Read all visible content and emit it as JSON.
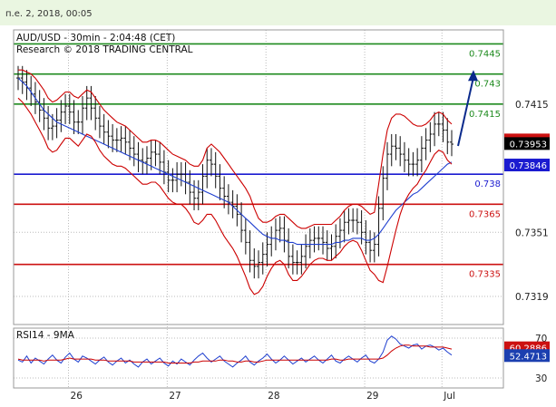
{
  "header": {
    "timestamp": "п.е. 2, 2018, 00:05",
    "symbol_line": "AUD/USD - 30min - 2:04:48 (CET)",
    "research_line": "Research © 2018 TRADING CENTRAL"
  },
  "chart_data": [
    {
      "type": "line",
      "title": "AUD/USD - 30min - 2:04:48 (CET)",
      "x_tick_labels": [
        "26",
        "27",
        "28",
        "29",
        "Jul"
      ],
      "ylim": [
        0.7305,
        0.7452
      ],
      "y_tick_labels": [
        "0.7415",
        "0.7351",
        "0.7319"
      ],
      "grid": true,
      "series": [
        {
          "name": "",
          "role": "price",
          "color": "#000000",
          "values": [
            0.7428,
            0.7426,
            0.7423,
            0.742,
            0.7416,
            0.7412,
            0.7408,
            0.7403,
            0.7404,
            0.7407,
            0.7411,
            0.7414,
            0.7411,
            0.7406,
            0.7406,
            0.7413,
            0.7418,
            0.7413,
            0.7408,
            0.7404,
            0.7401,
            0.7399,
            0.7397,
            0.7397,
            0.7398,
            0.7396,
            0.7393,
            0.739,
            0.7387,
            0.7386,
            0.7388,
            0.7391,
            0.739,
            0.7386,
            0.7381,
            0.7377,
            0.7377,
            0.738,
            0.738,
            0.7376,
            0.7371,
            0.7368,
            0.7371,
            0.7379,
            0.7387,
            0.7385,
            0.7379,
            0.7373,
            0.7369,
            0.7366,
            0.7364,
            0.736,
            0.7352,
            0.7346,
            0.7337,
            0.7334,
            0.7336,
            0.734,
            0.7345,
            0.7348,
            0.7352,
            0.7353,
            0.7347,
            0.7339,
            0.7336,
            0.7336,
            0.7339,
            0.7344,
            0.7347,
            0.7348,
            0.7348,
            0.7346,
            0.7343,
            0.7344,
            0.7349,
            0.7352,
            0.7356,
            0.7357,
            0.7357,
            0.7356,
            0.7351,
            0.7346,
            0.7342,
            0.7345,
            0.7363,
            0.7378,
            0.739,
            0.7394,
            0.7393,
            0.739,
            0.7387,
            0.7385,
            0.7385,
            0.7387,
            0.7393,
            0.7397,
            0.74,
            0.7405,
            0.7405,
            0.7402,
            0.7396,
            0.7395
          ]
        },
        {
          "name": "",
          "role": "ma-blue",
          "color": "#1f3fcf",
          "values": [
            0.7428,
            0.7426,
            0.7424,
            0.7421,
            0.7418,
            0.7415,
            0.7412,
            0.741,
            0.7408,
            0.7406,
            0.7405,
            0.7404,
            0.7403,
            0.7402,
            0.7401,
            0.74,
            0.7399,
            0.7398,
            0.7397,
            0.7396,
            0.7395,
            0.7394,
            0.7393,
            0.7392,
            0.7391,
            0.739,
            0.7389,
            0.7388,
            0.7387,
            0.7386,
            0.7385,
            0.7384,
            0.7383,
            0.7382,
            0.7381,
            0.738,
            0.7379,
            0.7378,
            0.7377,
            0.7376,
            0.7375,
            0.7374,
            0.7373,
            0.7372,
            0.7371,
            0.737,
            0.7369,
            0.7368,
            0.7367,
            0.7366,
            0.7364,
            0.7362,
            0.736,
            0.7358,
            0.7356,
            0.7354,
            0.7352,
            0.735,
            0.7349,
            0.7348,
            0.7348,
            0.7347,
            0.7347,
            0.7346,
            0.7346,
            0.7345,
            0.7345,
            0.7345,
            0.7345,
            0.7345,
            0.7345,
            0.7345,
            0.7345,
            0.7345,
            0.7346,
            0.7346,
            0.7347,
            0.7347,
            0.7348,
            0.7348,
            0.7348,
            0.7347,
            0.7347,
            0.7348,
            0.735,
            0.7353,
            0.7356,
            0.7359,
            0.7362,
            0.7364,
            0.7366,
            0.7368,
            0.737,
            0.7371,
            0.7373,
            0.7375,
            0.7377,
            0.7379,
            0.7381,
            0.7383,
            0.7385,
            0.7386
          ]
        },
        {
          "name": "",
          "role": "bollinger-upper",
          "color": "#cc0000",
          "values": [
            0.7432,
            0.7432,
            0.7431,
            0.743,
            0.7428,
            0.7425,
            0.7422,
            0.7418,
            0.7416,
            0.7417,
            0.7419,
            0.7421,
            0.7421,
            0.7419,
            0.7418,
            0.742,
            0.7422,
            0.7421,
            0.7418,
            0.7415,
            0.7412,
            0.741,
            0.7408,
            0.7406,
            0.7405,
            0.7404,
            0.7402,
            0.74,
            0.7398,
            0.7396,
            0.7396,
            0.7397,
            0.7397,
            0.7396,
            0.7394,
            0.7392,
            0.739,
            0.7389,
            0.7388,
            0.7387,
            0.7385,
            0.7384,
            0.7384,
            0.7387,
            0.7393,
            0.7395,
            0.7393,
            0.7391,
            0.7388,
            0.7385,
            0.7382,
            0.7379,
            0.7376,
            0.7373,
            0.7369,
            0.7363,
            0.7358,
            0.7356,
            0.7356,
            0.7357,
            0.7359,
            0.736,
            0.736,
            0.7358,
            0.7356,
            0.7354,
            0.7353,
            0.7353,
            0.7354,
            0.7355,
            0.7355,
            0.7355,
            0.7355,
            0.7355,
            0.7357,
            0.7359,
            0.7362,
            0.7364,
            0.7365,
            0.7365,
            0.7364,
            0.7362,
            0.736,
            0.7361,
            0.7375,
            0.739,
            0.7402,
            0.7408,
            0.741,
            0.741,
            0.7409,
            0.7407,
            0.7405,
            0.7404,
            0.7404,
            0.7405,
            0.7407,
            0.741,
            0.7411,
            0.741,
            0.7407,
            0.7405
          ]
        },
        {
          "name": "",
          "role": "bollinger-lower",
          "color": "#cc0000",
          "values": [
            0.7418,
            0.7416,
            0.7413,
            0.741,
            0.7406,
            0.7402,
            0.7398,
            0.7393,
            0.7391,
            0.7392,
            0.7395,
            0.7398,
            0.7398,
            0.7396,
            0.7394,
            0.7397,
            0.74,
            0.7399,
            0.7396,
            0.7392,
            0.7389,
            0.7387,
            0.7385,
            0.7384,
            0.7384,
            0.7383,
            0.7381,
            0.7379,
            0.7377,
            0.7375,
            0.7375,
            0.7376,
            0.7376,
            0.7374,
            0.7371,
            0.7368,
            0.7366,
            0.7365,
            0.7365,
            0.7363,
            0.736,
            0.7356,
            0.7355,
            0.7357,
            0.736,
            0.736,
            0.7357,
            0.7353,
            0.7349,
            0.7346,
            0.7343,
            0.7339,
            0.7334,
            0.7329,
            0.7323,
            0.732,
            0.7321,
            0.7324,
            0.7329,
            0.7333,
            0.7336,
            0.7337,
            0.7335,
            0.733,
            0.7327,
            0.7327,
            0.7329,
            0.7332,
            0.7335,
            0.7337,
            0.7338,
            0.7338,
            0.7337,
            0.7337,
            0.7339,
            0.7341,
            0.7344,
            0.7346,
            0.7347,
            0.7346,
            0.7342,
            0.7337,
            0.7332,
            0.733,
            0.7327,
            0.7326,
            0.7334,
            0.7343,
            0.7352,
            0.736,
            0.7366,
            0.737,
            0.7373,
            0.7375,
            0.7379,
            0.7382,
            0.7386,
            0.739,
            0.7392,
            0.7391,
            0.7387,
            0.7385
          ]
        }
      ],
      "levels": [
        {
          "label": "0.7445",
          "value": 0.7445,
          "color": "#1e8a1e"
        },
        {
          "label": "0.743",
          "value": 0.743,
          "color": "#1e8a1e"
        },
        {
          "label": "0.7415",
          "value": 0.7415,
          "color": "#1e8a1e"
        },
        {
          "label": "0.738",
          "value": 0.738,
          "color": "#1b1bd0"
        },
        {
          "label": "0.7365",
          "value": 0.7365,
          "color": "#cc1111"
        },
        {
          "label": "0.7335",
          "value": 0.7335,
          "color": "#cc1111"
        }
      ],
      "price_tags": [
        {
          "label": "0.73971",
          "value": 0.73971,
          "color": "#cc1111"
        },
        {
          "label": "0.73953",
          "value": 0.73953,
          "color": "#000000"
        },
        {
          "label": "0.73846",
          "value": 0.73846,
          "color": "#1b1bd0"
        }
      ],
      "arrow_target": 0.7432,
      "arrow_color": "#0a2a8c"
    },
    {
      "type": "line",
      "title": "RSI14 - 9MA",
      "ylim": [
        20,
        80
      ],
      "y_tick_labels": [
        "70",
        "30"
      ],
      "series": [
        {
          "name": "",
          "role": "rsi",
          "color": "#1f3fcf",
          "values": [
            48,
            46,
            52,
            45,
            50,
            47,
            44,
            49,
            53,
            48,
            45,
            51,
            55,
            49,
            46,
            52,
            50,
            47,
            44,
            48,
            51,
            46,
            43,
            47,
            50,
            45,
            48,
            44,
            41,
            46,
            49,
            44,
            47,
            50,
            45,
            42,
            47,
            44,
            49,
            46,
            43,
            48,
            52,
            55,
            50,
            46,
            49,
            52,
            47,
            44,
            41,
            45,
            48,
            52,
            46,
            43,
            47,
            50,
            54,
            49,
            45,
            48,
            52,
            48,
            44,
            47,
            50,
            46,
            49,
            52,
            48,
            45,
            49,
            53,
            47,
            45,
            49,
            52,
            49,
            46,
            50,
            53,
            47,
            45,
            49,
            56,
            68,
            72,
            69,
            64,
            62,
            60,
            63,
            64,
            59,
            62,
            63,
            61,
            58,
            60,
            56,
            53
          ]
        },
        {
          "name": "",
          "role": "rsi-ma",
          "color": "#cc0000",
          "values": [
            49,
            48,
            48,
            48,
            48,
            48,
            47,
            48,
            48,
            48,
            48,
            49,
            50,
            49,
            49,
            49,
            49,
            49,
            48,
            48,
            48,
            47,
            47,
            47,
            47,
            47,
            47,
            46,
            46,
            46,
            46,
            46,
            46,
            46,
            46,
            45,
            45,
            45,
            45,
            45,
            45,
            46,
            46,
            47,
            47,
            47,
            47,
            48,
            48,
            47,
            47,
            46,
            46,
            47,
            47,
            46,
            46,
            47,
            48,
            48,
            48,
            48,
            48,
            48,
            48,
            48,
            48,
            48,
            48,
            48,
            48,
            48,
            48,
            49,
            49,
            48,
            48,
            49,
            49,
            49,
            49,
            49,
            49,
            49,
            49,
            50,
            53,
            57,
            60,
            62,
            63,
            63,
            62,
            62,
            62,
            62,
            61,
            61,
            61,
            61,
            60,
            59
          ]
        }
      ],
      "tags": [
        {
          "label": "60.2886",
          "value": 60.2886,
          "color": "#cc1111"
        },
        {
          "label": "52.4713",
          "value": 52.4713,
          "color": "#1b3fb0"
        }
      ]
    }
  ]
}
